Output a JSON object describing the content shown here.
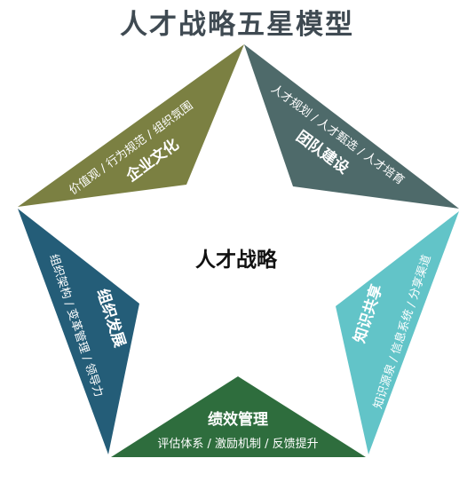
{
  "title": "人才战略五星模型",
  "center_label": "人才战略",
  "colors": {
    "culture": "#7b8042",
    "team": "#4e6a6a",
    "organization": "#245d78",
    "knowledge": "#62c4c8",
    "performance": "#2e6d3d"
  },
  "points": {
    "culture": {
      "heading": "企业文化",
      "detail": "价值观 / 行为规范 / 组织氛围"
    },
    "team": {
      "heading": "团队建设",
      "detail": "人才规划 / 人才甄选 / 人才培育"
    },
    "organization": {
      "heading": "组织发展",
      "detail": "组织架构 / 变革管理 / 领导力"
    },
    "knowledge": {
      "heading": "知识共享",
      "detail": "知识源泉 / 信息系统 / 分享渠道"
    },
    "performance": {
      "heading": "绩效管理",
      "detail": "评估体系 / 激励机制 / 反馈提升"
    }
  }
}
